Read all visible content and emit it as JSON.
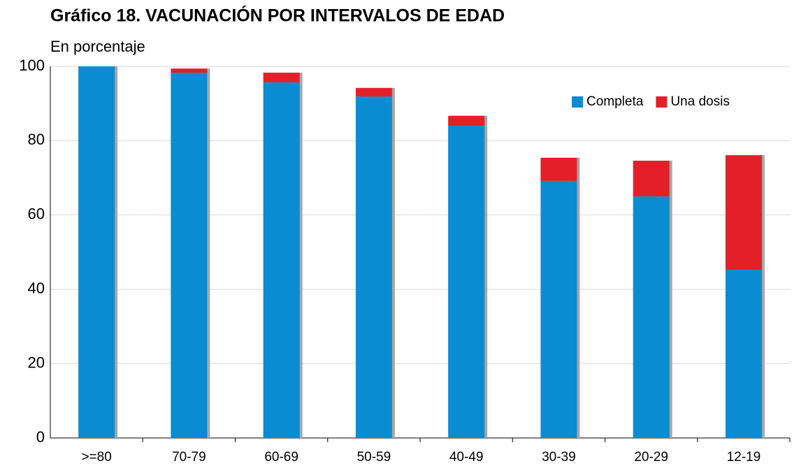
{
  "chart_data": {
    "type": "stacked_bar",
    "title": "Gráfico 18. VACUNACIÓN POR INTERVALOS DE EDAD",
    "subtitle": "En porcentaje",
    "categories": [
      ">=80",
      "70-79",
      "60-69",
      "50-59",
      "40-49",
      "30-39",
      "20-29",
      "12-19"
    ],
    "series": [
      {
        "name": "Completa",
        "color": "#0a8cd2",
        "values": [
          100,
          98.3,
          95.7,
          91.9,
          84.0,
          69.2,
          65.0,
          45.3
        ]
      },
      {
        "name": "Una dosis",
        "color": "#e3202a",
        "values": [
          0,
          1.1,
          2.6,
          2.3,
          2.7,
          6.2,
          9.6,
          30.8
        ]
      }
    ],
    "ylim": [
      0,
      100
    ],
    "yticks": [
      0,
      20,
      40,
      60,
      80,
      100
    ],
    "grid": true,
    "legend": "upper right"
  }
}
